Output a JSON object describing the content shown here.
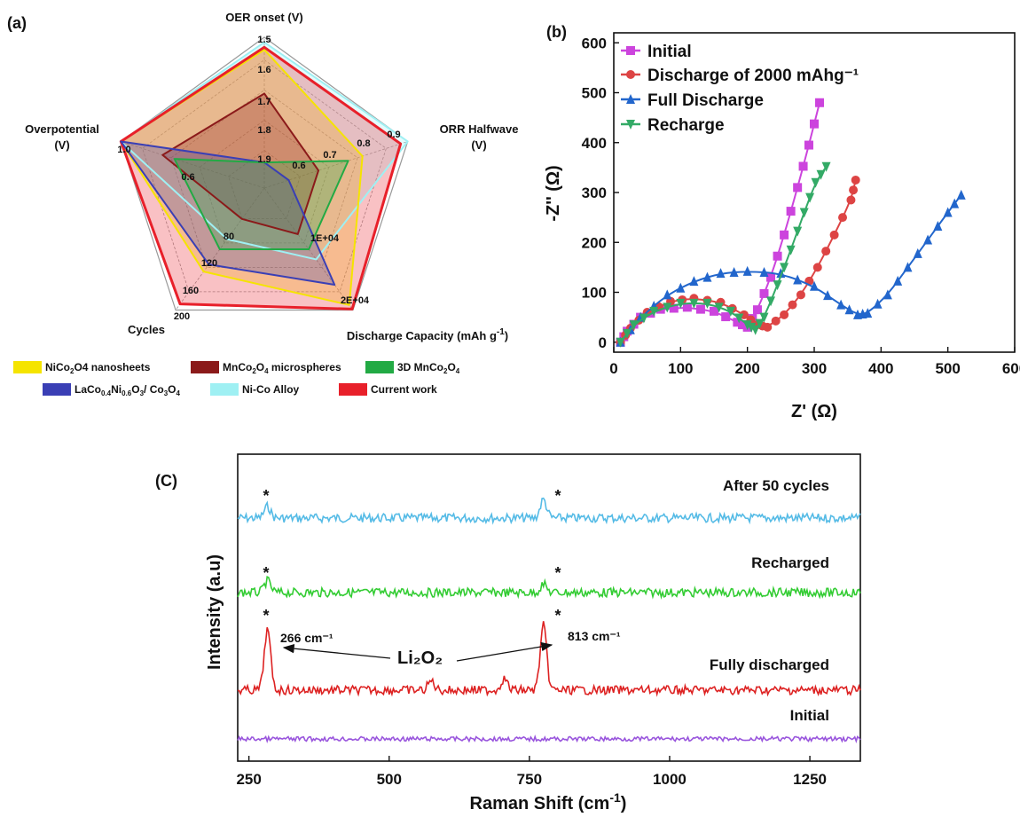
{
  "panels": {
    "a": "(a)",
    "b": "(b)",
    "c": "(C)"
  },
  "chart_data": [
    {
      "type": "radar",
      "axes": [
        {
          "name": "OER onset (V)",
          "ticks": [
            "1.5",
            "1.6",
            "1.7",
            "1.8",
            "1.9"
          ]
        },
        {
          "name": "ORR Halfwave (V)",
          "ticks": [
            "0.9",
            "0.8",
            "0.7",
            "0.6"
          ]
        },
        {
          "name": "Discharge Capacity (mAh g⁻¹)",
          "ticks": [
            "2E+04",
            "1E+04"
          ]
        },
        {
          "name": "Cycles",
          "ticks": [
            "200",
            "160",
            "120",
            "80"
          ]
        },
        {
          "name": "Overpotential (V)",
          "ticks": [
            "1.0",
            "0.6"
          ]
        }
      ],
      "series": [
        {
          "name": "Ni-Co Alloy",
          "color": "#9ff0f3",
          "values": [
            0.96,
            1.0,
            0.5,
            0.3,
            1.0
          ]
        },
        {
          "name": "NiCo2O4 nanosheets",
          "color": "#f5e400",
          "values": [
            0.9,
            0.62,
            0.95,
            0.62,
            1.0
          ]
        },
        {
          "name": "Current work",
          "color": "#e8202a",
          "values": [
            0.92,
            0.94,
            0.99,
            0.94,
            1.0
          ]
        },
        {
          "name": "MnCo2O4 microspheres",
          "color": "#8b1a1a",
          "values": [
            0.55,
            0.25,
            0.25,
            0.1,
            0.65
          ]
        },
        {
          "name": "LaCo0.4Ni0.6O3/ Co3O4",
          "color": "#3a3fb5",
          "values": [
            0.0,
            0.0,
            0.75,
            0.55,
            1.0
          ]
        },
        {
          "name": "3D MnCo2O4",
          "color": "#22aa44",
          "values": [
            0.0,
            0.5,
            0.4,
            0.4,
            0.55
          ]
        }
      ]
    },
    {
      "type": "line",
      "xlabel": "Z' (Ω)",
      "ylabel": "-Z'' (Ω)",
      "xlim": [
        0,
        600
      ],
      "ylim": [
        -20,
        620
      ],
      "xticks": [
        0,
        100,
        200,
        300,
        400,
        500,
        600
      ],
      "yticks": [
        0,
        100,
        200,
        300,
        400,
        500,
        600
      ],
      "legend": "top-left",
      "series": [
        {
          "name": "Initial",
          "color": "#cc44dd",
          "marker": "square",
          "x": [
            10,
            20,
            40,
            70,
            110,
            150,
            185,
            200,
            215,
            235,
            255,
            275,
            292,
            308
          ],
          "y": [
            0,
            22,
            50,
            66,
            70,
            62,
            40,
            30,
            65,
            130,
            215,
            310,
            395,
            480
          ]
        },
        {
          "name": "Discharge of 2000 mAhg⁻¹",
          "color": "#dd4444",
          "marker": "circle",
          "x": [
            10,
            25,
            50,
            85,
            120,
            160,
            195,
            215,
            230,
            255,
            280,
            305,
            330,
            355,
            362
          ],
          "y": [
            0,
            28,
            60,
            82,
            88,
            80,
            55,
            35,
            30,
            55,
            95,
            150,
            215,
            285,
            325
          ]
        },
        {
          "name": "Full Discharge",
          "color": "#2266cc",
          "marker": "triangle-up",
          "x": [
            10,
            40,
            80,
            120,
            160,
            200,
            250,
            300,
            340,
            365,
            380,
            410,
            440,
            470,
            500,
            520
          ],
          "y": [
            0,
            50,
            95,
            122,
            138,
            142,
            138,
            112,
            75,
            55,
            58,
            95,
            150,
            205,
            260,
            295
          ]
        },
        {
          "name": "Recharge",
          "color": "#33aa66",
          "marker": "triangle-down",
          "x": [
            10,
            30,
            60,
            100,
            140,
            175,
            200,
            212,
            225,
            245,
            265,
            285,
            302,
            318
          ],
          "y": [
            0,
            35,
            62,
            78,
            78,
            62,
            35,
            25,
            50,
            115,
            185,
            260,
            320,
            352
          ]
        }
      ]
    },
    {
      "type": "line",
      "xlabel": "Raman Shift (cm⁻¹)",
      "ylabel": "Intensity (a.u)",
      "xlim": [
        230,
        1340
      ],
      "xticks": [
        250,
        500,
        750,
        1000,
        1250
      ],
      "yticks_shown": false,
      "series": [
        {
          "name": "After 50 cycles",
          "color": "#55bbe6",
          "offset": 3,
          "peaks": [
            [
              283,
              0.25
            ],
            [
              775,
              0.4
            ]
          ]
        },
        {
          "name": "Recharged",
          "color": "#33cc33",
          "offset": 2,
          "peaks": [
            [
              283,
              0.25
            ],
            [
              775,
              0.18
            ]
          ]
        },
        {
          "name": "Fully discharged",
          "color": "#dd2222",
          "offset": 1,
          "peaks": [
            [
              283,
              1.3
            ],
            [
              775,
              1.4
            ],
            [
              575,
              0.2
            ],
            [
              705,
              0.25
            ]
          ]
        },
        {
          "name": "Initial",
          "color": "#9955dd",
          "offset": 0,
          "peaks": []
        }
      ],
      "annotations": {
        "star": "*",
        "peak1": "266 cm⁻¹",
        "peak2": "813 cm⁻¹",
        "compound": "Li₂O₂"
      }
    }
  ]
}
